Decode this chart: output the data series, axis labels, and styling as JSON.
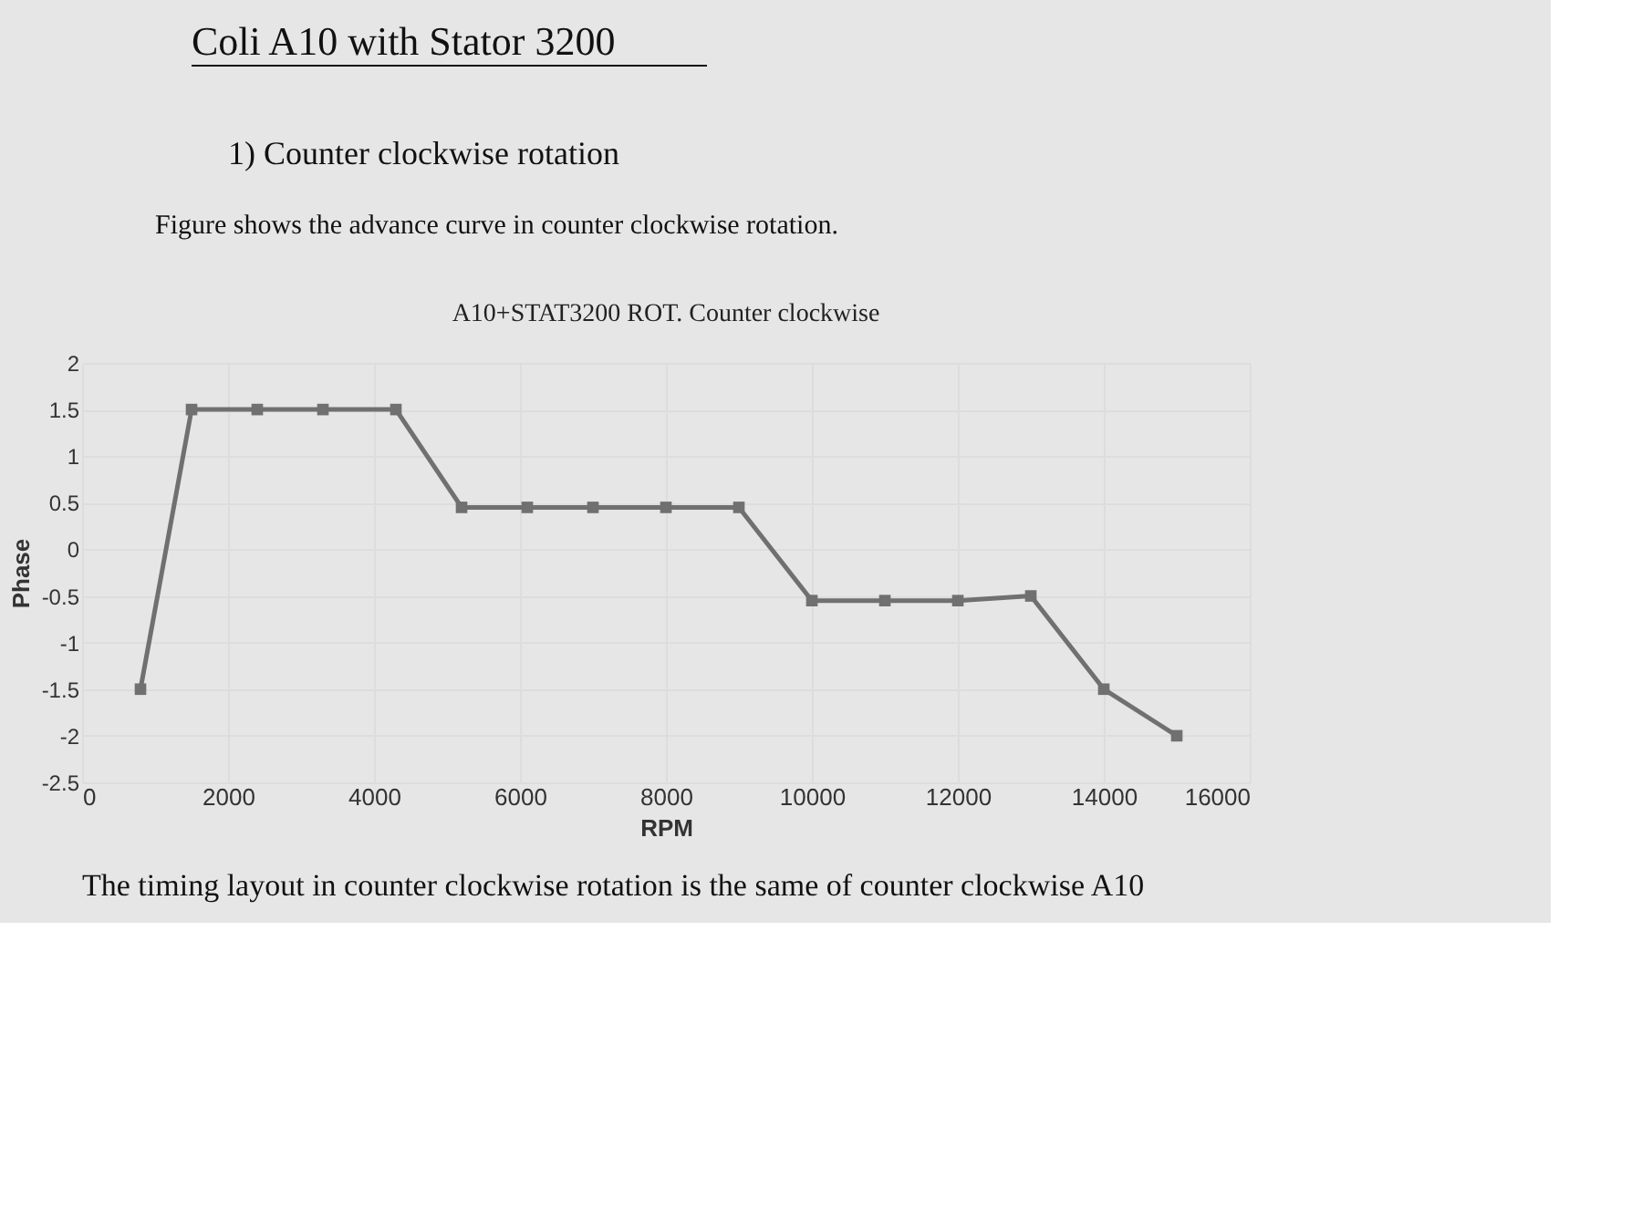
{
  "chart_data": {
    "type": "line",
    "title": "A10+STAT3200 ROT. Counter clockwise",
    "xlabel": "RPM",
    "ylabel": "Phase",
    "annotations": [
      "Coli A10 with Stator 3200",
      "1) Counter clockwise rotation",
      "Figure shows the advance curve in counter clockwise rotation.",
      "The timing layout in counter clockwise rotation is the same of counter clockwise A10"
    ],
    "x": [
      800,
      1500,
      2400,
      3300,
      4300,
      5200,
      6100,
      7000,
      8000,
      9000,
      10000,
      11000,
      12000,
      13000,
      14000,
      15000
    ],
    "series": [
      {
        "color": "#707070",
        "values": [
          -1.5,
          1.5,
          1.5,
          1.5,
          1.5,
          0.45,
          0.45,
          0.45,
          0.45,
          0.45,
          -0.55,
          -0.55,
          -0.55,
          -0.5,
          -1.5,
          -2
        ]
      }
    ],
    "xlim": [
      0,
      16000
    ],
    "xticks": [
      0,
      2000,
      4000,
      6000,
      8000,
      10000,
      12000,
      14000,
      16000
    ],
    "ylim": [
      -2.5,
      2
    ],
    "yticks": [
      -2.5,
      -2,
      -1.5,
      -1,
      -0.5,
      0,
      0.5,
      1,
      1.5,
      2
    ],
    "grid": true,
    "marker": "square",
    "line_style": "solid"
  }
}
